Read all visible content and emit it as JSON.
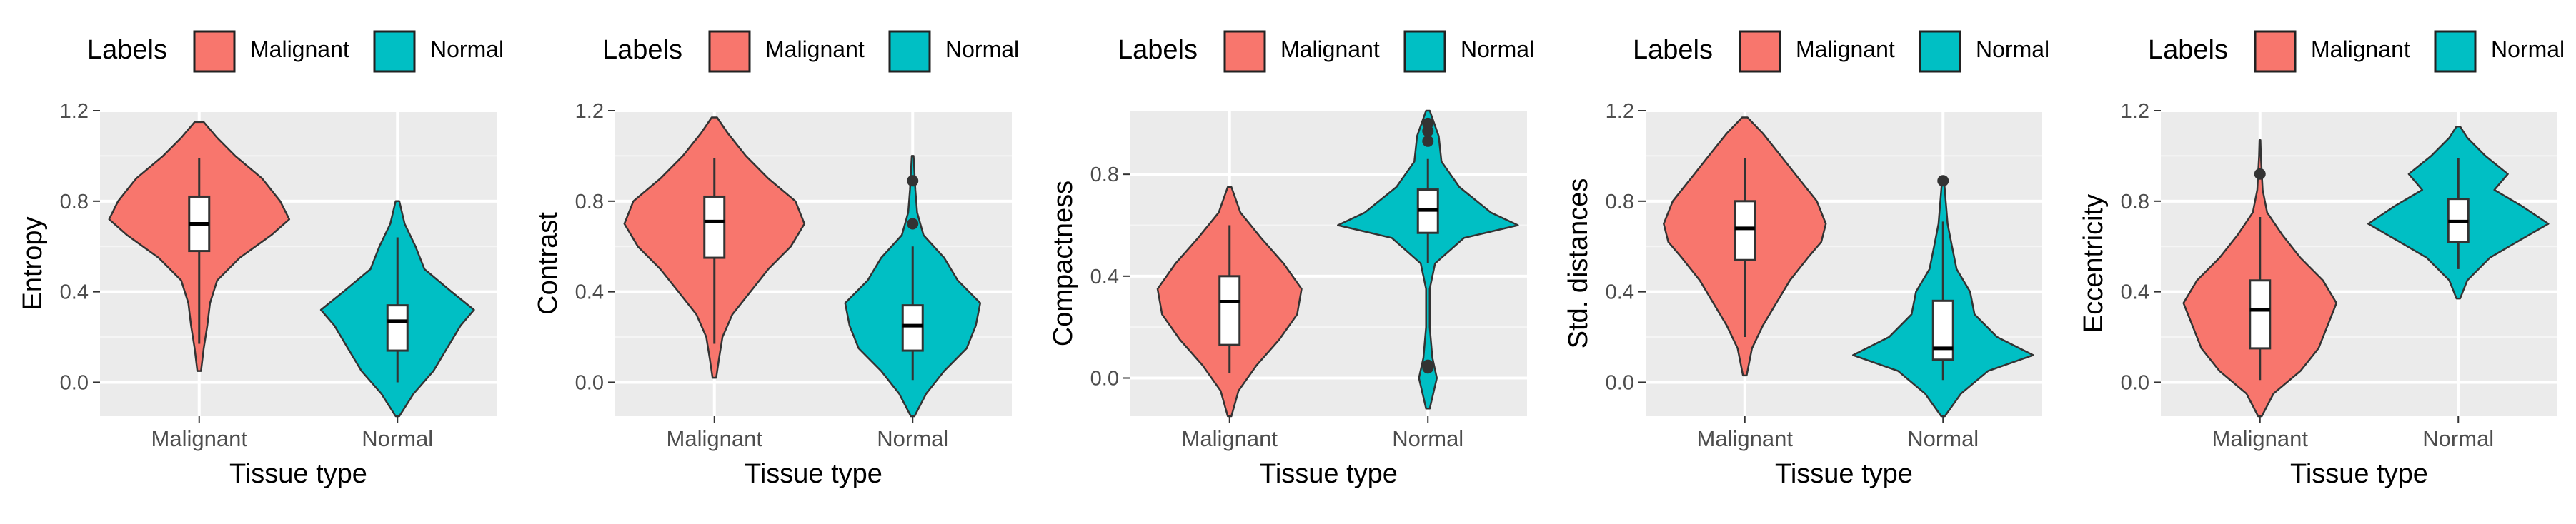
{
  "legend": {
    "title": "Labels",
    "items": [
      {
        "label": "Malignant",
        "color": "#F8766D"
      },
      {
        "label": "Normal",
        "color": "#00BFC4"
      }
    ]
  },
  "chart_data": [
    {
      "type": "violin",
      "title": "",
      "xlabel": "Tissue type",
      "ylabel": "Entropy",
      "categories": [
        "Malignant",
        "Normal"
      ],
      "ylim": [
        -0.15,
        1.2
      ],
      "yticks": [
        0.0,
        0.4,
        0.8,
        1.2
      ],
      "ytick_labels": [
        "0.0",
        "0.4",
        "0.8",
        "1.2"
      ],
      "groups": [
        {
          "name": "Malignant",
          "color": "#F8766D",
          "box": {
            "q1": 0.58,
            "median": 0.7,
            "q3": 0.82,
            "whisker_low": 0.17,
            "whisker_high": 0.99
          },
          "outliers": [],
          "violin": [
            [
              0.05,
              0.02
            ],
            [
              0.15,
              0.05
            ],
            [
              0.25,
              0.09
            ],
            [
              0.35,
              0.12
            ],
            [
              0.45,
              0.2
            ],
            [
              0.55,
              0.45
            ],
            [
              0.65,
              0.8
            ],
            [
              0.72,
              1.0
            ],
            [
              0.8,
              0.9
            ],
            [
              0.9,
              0.7
            ],
            [
              1.0,
              0.4
            ],
            [
              1.08,
              0.2
            ],
            [
              1.15,
              0.05
            ]
          ]
        },
        {
          "name": "Normal",
          "color": "#00BFC4",
          "box": {
            "q1": 0.14,
            "median": 0.27,
            "q3": 0.34,
            "whisker_low": 0.0,
            "whisker_high": 0.64
          },
          "outliers": [],
          "violin": [
            [
              -0.15,
              0.02
            ],
            [
              -0.05,
              0.18
            ],
            [
              0.05,
              0.4
            ],
            [
              0.15,
              0.55
            ],
            [
              0.25,
              0.7
            ],
            [
              0.32,
              0.85
            ],
            [
              0.4,
              0.6
            ],
            [
              0.5,
              0.3
            ],
            [
              0.6,
              0.2
            ],
            [
              0.7,
              0.08
            ],
            [
              0.8,
              0.02
            ]
          ]
        }
      ]
    },
    {
      "type": "violin",
      "title": "",
      "xlabel": "Tissue type",
      "ylabel": "Contrast",
      "categories": [
        "Malignant",
        "Normal"
      ],
      "ylim": [
        -0.15,
        1.2
      ],
      "yticks": [
        0.0,
        0.4,
        0.8,
        1.2
      ],
      "ytick_labels": [
        "0.0",
        "0.4",
        "0.8",
        "1.2"
      ],
      "groups": [
        {
          "name": "Malignant",
          "color": "#F8766D",
          "box": {
            "q1": 0.55,
            "median": 0.71,
            "q3": 0.82,
            "whisker_low": 0.17,
            "whisker_high": 0.99
          },
          "outliers": [],
          "violin": [
            [
              0.02,
              0.02
            ],
            [
              0.1,
              0.05
            ],
            [
              0.2,
              0.09
            ],
            [
              0.3,
              0.2
            ],
            [
              0.4,
              0.4
            ],
            [
              0.5,
              0.6
            ],
            [
              0.6,
              0.85
            ],
            [
              0.7,
              1.0
            ],
            [
              0.8,
              0.9
            ],
            [
              0.9,
              0.6
            ],
            [
              1.0,
              0.35
            ],
            [
              1.1,
              0.15
            ],
            [
              1.17,
              0.03
            ]
          ]
        },
        {
          "name": "Normal",
          "color": "#00BFC4",
          "box": {
            "q1": 0.14,
            "median": 0.25,
            "q3": 0.34,
            "whisker_low": 0.01,
            "whisker_high": 0.6
          },
          "outliers": [
            0.7,
            0.89
          ],
          "violin": [
            [
              -0.15,
              0.02
            ],
            [
              -0.05,
              0.15
            ],
            [
              0.05,
              0.35
            ],
            [
              0.15,
              0.6
            ],
            [
              0.25,
              0.7
            ],
            [
              0.35,
              0.75
            ],
            [
              0.45,
              0.5
            ],
            [
              0.55,
              0.35
            ],
            [
              0.65,
              0.12
            ],
            [
              0.75,
              0.05
            ],
            [
              0.85,
              0.03
            ],
            [
              1.0,
              0.01
            ]
          ]
        }
      ]
    },
    {
      "type": "violin",
      "title": "",
      "xlabel": "Tissue type",
      "ylabel": "Compactness",
      "categories": [
        "Malignant",
        "Normal"
      ],
      "ylim": [
        -0.15,
        1.05
      ],
      "yticks": [
        0.0,
        0.4,
        0.8
      ],
      "ytick_labels": [
        "0.0",
        "0.4",
        "0.8"
      ],
      "groups": [
        {
          "name": "Malignant",
          "color": "#F8766D",
          "box": {
            "q1": 0.13,
            "median": 0.3,
            "q3": 0.4,
            "whisker_low": 0.02,
            "whisker_high": 0.6
          },
          "outliers": [],
          "violin": [
            [
              -0.15,
              0.02
            ],
            [
              -0.05,
              0.1
            ],
            [
              0.05,
              0.3
            ],
            [
              0.15,
              0.55
            ],
            [
              0.25,
              0.75
            ],
            [
              0.35,
              0.8
            ],
            [
              0.45,
              0.6
            ],
            [
              0.55,
              0.35
            ],
            [
              0.65,
              0.12
            ],
            [
              0.75,
              0.02
            ]
          ]
        },
        {
          "name": "Normal",
          "color": "#00BFC4",
          "box": {
            "q1": 0.57,
            "median": 0.66,
            "q3": 0.74,
            "whisker_low": 0.45,
            "whisker_high": 0.86
          },
          "outliers": [
            0.04,
            0.05,
            0.93,
            0.97,
            1.0
          ],
          "violin": [
            [
              -0.12,
              0.02
            ],
            [
              0.0,
              0.1
            ],
            [
              0.08,
              0.05
            ],
            [
              0.2,
              0.02
            ],
            [
              0.35,
              0.02
            ],
            [
              0.45,
              0.08
            ],
            [
              0.55,
              0.4
            ],
            [
              0.6,
              1.0
            ],
            [
              0.65,
              0.7
            ],
            [
              0.75,
              0.35
            ],
            [
              0.85,
              0.15
            ],
            [
              0.95,
              0.12
            ],
            [
              1.05,
              0.02
            ]
          ]
        }
      ]
    },
    {
      "type": "violin",
      "title": "",
      "xlabel": "Tissue type",
      "ylabel": "Std. distances",
      "categories": [
        "Malignant",
        "Normal"
      ],
      "ylim": [
        -0.15,
        1.2
      ],
      "yticks": [
        0.0,
        0.4,
        0.8,
        1.2
      ],
      "ytick_labels": [
        "0.0",
        "0.4",
        "0.8",
        "1.2"
      ],
      "groups": [
        {
          "name": "Malignant",
          "color": "#F8766D",
          "box": {
            "q1": 0.54,
            "median": 0.68,
            "q3": 0.8,
            "whisker_low": 0.2,
            "whisker_high": 0.99
          },
          "outliers": [],
          "violin": [
            [
              0.03,
              0.02
            ],
            [
              0.15,
              0.08
            ],
            [
              0.25,
              0.2
            ],
            [
              0.35,
              0.35
            ],
            [
              0.45,
              0.5
            ],
            [
              0.55,
              0.7
            ],
            [
              0.62,
              0.85
            ],
            [
              0.7,
              0.9
            ],
            [
              0.8,
              0.8
            ],
            [
              0.9,
              0.6
            ],
            [
              1.0,
              0.4
            ],
            [
              1.1,
              0.2
            ],
            [
              1.17,
              0.03
            ]
          ]
        },
        {
          "name": "Normal",
          "color": "#00BFC4",
          "box": {
            "q1": 0.1,
            "median": 0.15,
            "q3": 0.36,
            "whisker_low": 0.01,
            "whisker_high": 0.71
          },
          "outliers": [
            0.89
          ],
          "violin": [
            [
              -0.15,
              0.02
            ],
            [
              -0.05,
              0.2
            ],
            [
              0.05,
              0.5
            ],
            [
              0.12,
              1.0
            ],
            [
              0.2,
              0.6
            ],
            [
              0.3,
              0.35
            ],
            [
              0.4,
              0.3
            ],
            [
              0.5,
              0.15
            ],
            [
              0.6,
              0.1
            ],
            [
              0.7,
              0.05
            ],
            [
              0.8,
              0.03
            ],
            [
              0.9,
              0.01
            ]
          ]
        }
      ]
    },
    {
      "type": "violin",
      "title": "",
      "xlabel": "Tissue type",
      "ylabel": "Eccentricity",
      "categories": [
        "Malignant",
        "Normal"
      ],
      "ylim": [
        -0.15,
        1.2
      ],
      "yticks": [
        0.0,
        0.4,
        0.8,
        1.2
      ],
      "ytick_labels": [
        "0.0",
        "0.4",
        "0.8",
        "1.2"
      ],
      "groups": [
        {
          "name": "Malignant",
          "color": "#F8766D",
          "box": {
            "q1": 0.15,
            "median": 0.32,
            "q3": 0.45,
            "whisker_low": 0.01,
            "whisker_high": 0.73
          },
          "outliers": [
            0.92
          ],
          "violin": [
            [
              -0.15,
              0.02
            ],
            [
              -0.05,
              0.15
            ],
            [
              0.05,
              0.45
            ],
            [
              0.15,
              0.65
            ],
            [
              0.25,
              0.75
            ],
            [
              0.35,
              0.85
            ],
            [
              0.45,
              0.7
            ],
            [
              0.55,
              0.45
            ],
            [
              0.65,
              0.25
            ],
            [
              0.75,
              0.08
            ],
            [
              0.85,
              0.03
            ],
            [
              1.0,
              0.01
            ],
            [
              1.07,
              0.005
            ]
          ]
        },
        {
          "name": "Normal",
          "color": "#00BFC4",
          "box": {
            "q1": 0.62,
            "median": 0.71,
            "q3": 0.81,
            "whisker_low": 0.5,
            "whisker_high": 0.99
          },
          "outliers": [],
          "violin": [
            [
              0.37,
              0.02
            ],
            [
              0.45,
              0.1
            ],
            [
              0.55,
              0.35
            ],
            [
              0.62,
              0.65
            ],
            [
              0.7,
              1.0
            ],
            [
              0.78,
              0.7
            ],
            [
              0.85,
              0.4
            ],
            [
              0.92,
              0.55
            ],
            [
              1.0,
              0.3
            ],
            [
              1.08,
              0.1
            ],
            [
              1.13,
              0.02
            ]
          ]
        }
      ]
    }
  ]
}
